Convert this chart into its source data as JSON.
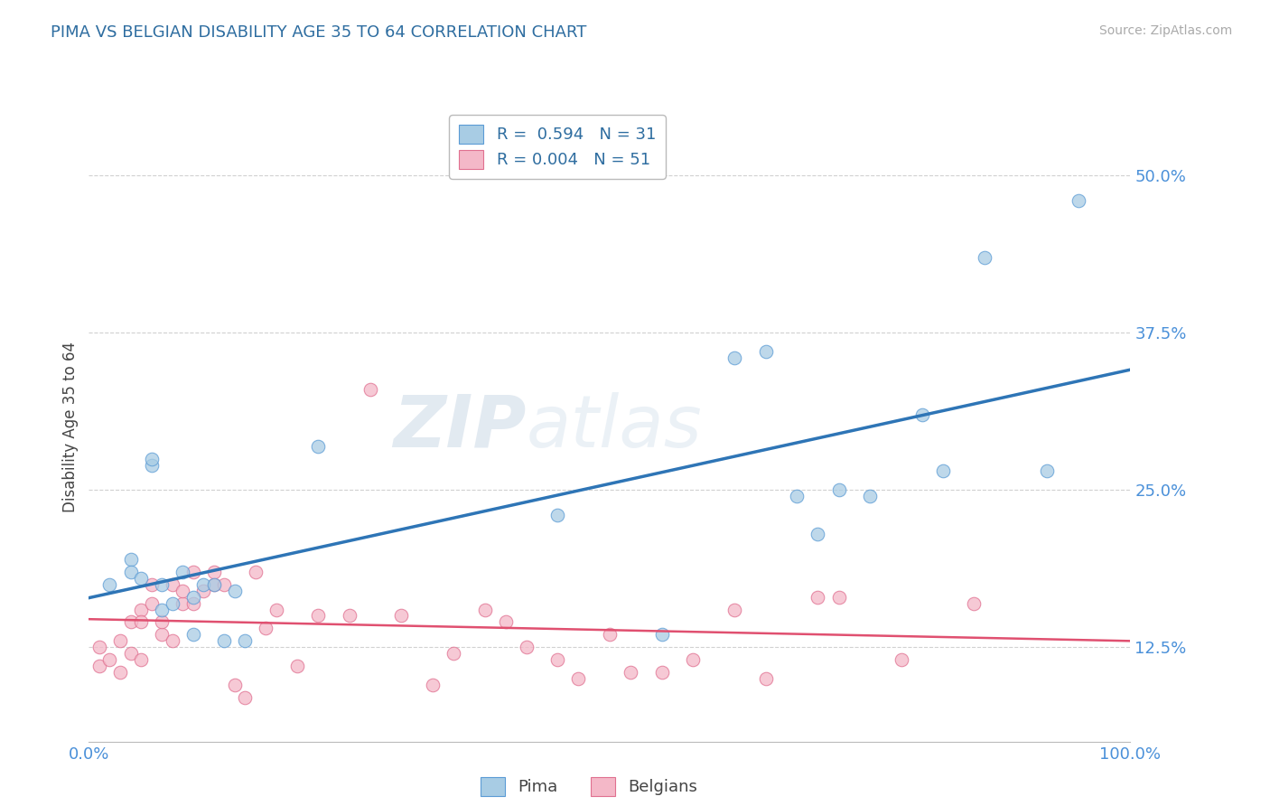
{
  "title": "PIMA VS BELGIAN DISABILITY AGE 35 TO 64 CORRELATION CHART",
  "source": "Source: ZipAtlas.com",
  "ylabel": "Disability Age 35 to 64",
  "xlim": [
    0.0,
    1.0
  ],
  "ylim": [
    0.05,
    0.55
  ],
  "yticks": [
    0.125,
    0.25,
    0.375,
    0.5
  ],
  "ytick_labels": [
    "12.5%",
    "25.0%",
    "37.5%",
    "50.0%"
  ],
  "xticks": [
    0.0,
    1.0
  ],
  "xtick_labels": [
    "0.0%",
    "100.0%"
  ],
  "legend_line1": "R =  0.594   N = 31",
  "legend_line2": "R = 0.004   N = 51",
  "pima_color": "#a8cce4",
  "belgian_color": "#f4b8c8",
  "pima_edge_color": "#5b9bd5",
  "belgian_edge_color": "#e07090",
  "pima_trend_color": "#2e75b6",
  "belgian_trend_color": "#e05070",
  "watermark_zip": "ZIP",
  "watermark_atlas": "atlas",
  "pima_x": [
    0.02,
    0.04,
    0.04,
    0.05,
    0.06,
    0.06,
    0.07,
    0.07,
    0.08,
    0.09,
    0.1,
    0.1,
    0.11,
    0.12,
    0.13,
    0.14,
    0.15,
    0.22,
    0.45,
    0.55,
    0.62,
    0.65,
    0.68,
    0.7,
    0.72,
    0.75,
    0.8,
    0.82,
    0.86,
    0.92,
    0.95
  ],
  "pima_y": [
    0.175,
    0.195,
    0.185,
    0.18,
    0.27,
    0.275,
    0.175,
    0.155,
    0.16,
    0.185,
    0.135,
    0.165,
    0.175,
    0.175,
    0.13,
    0.17,
    0.13,
    0.285,
    0.23,
    0.135,
    0.355,
    0.36,
    0.245,
    0.215,
    0.25,
    0.245,
    0.31,
    0.265,
    0.435,
    0.265,
    0.48
  ],
  "belgian_x": [
    0.01,
    0.01,
    0.02,
    0.03,
    0.03,
    0.04,
    0.04,
    0.05,
    0.05,
    0.05,
    0.06,
    0.06,
    0.07,
    0.07,
    0.08,
    0.08,
    0.09,
    0.09,
    0.1,
    0.1,
    0.11,
    0.12,
    0.12,
    0.13,
    0.14,
    0.15,
    0.16,
    0.17,
    0.18,
    0.2,
    0.22,
    0.25,
    0.27,
    0.3,
    0.33,
    0.35,
    0.38,
    0.4,
    0.42,
    0.45,
    0.47,
    0.5,
    0.52,
    0.55,
    0.58,
    0.62,
    0.65,
    0.7,
    0.72,
    0.78,
    0.85
  ],
  "belgian_y": [
    0.11,
    0.125,
    0.115,
    0.105,
    0.13,
    0.12,
    0.145,
    0.155,
    0.115,
    0.145,
    0.16,
    0.175,
    0.135,
    0.145,
    0.13,
    0.175,
    0.16,
    0.17,
    0.16,
    0.185,
    0.17,
    0.175,
    0.185,
    0.175,
    0.095,
    0.085,
    0.185,
    0.14,
    0.155,
    0.11,
    0.15,
    0.15,
    0.33,
    0.15,
    0.095,
    0.12,
    0.155,
    0.145,
    0.125,
    0.115,
    0.1,
    0.135,
    0.105,
    0.105,
    0.115,
    0.155,
    0.1,
    0.165,
    0.165,
    0.115,
    0.16
  ]
}
